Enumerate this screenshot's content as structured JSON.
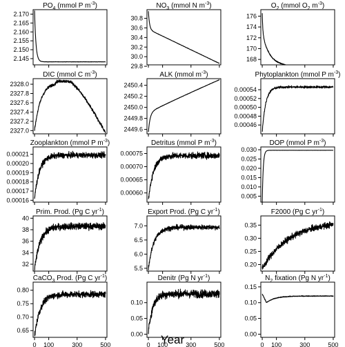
{
  "figure": {
    "xlabel": "Year"
  },
  "chart_data": [
    {
      "type": "line",
      "title": {
        "pre": "PO",
        "sub": "4",
        "post": " (mmol P m",
        "sup": "-3",
        "end": ")"
      },
      "yticks": [
        2.145,
        2.15,
        2.155,
        2.16,
        2.165,
        2.17
      ],
      "yticklabels": [
        "2.145",
        "2.150",
        "2.155",
        "2.160",
        "2.165",
        "2.170"
      ],
      "ylim": [
        2.1415,
        2.1725
      ],
      "xlim": [
        -10,
        510
      ],
      "xticks": [
        0,
        100,
        300,
        500
      ],
      "xticklabels": [
        "0",
        "100",
        "300",
        "500"
      ],
      "xticklabels_shown": false,
      "series": {
        "kind": "exp",
        "start": 2.172,
        "end": 2.1432,
        "tau": 10,
        "noise": 8e-05,
        "drift": 0
      }
    },
    {
      "type": "line",
      "title": {
        "pre": "NO",
        "sub": "3",
        "post": " (mmol N m",
        "sup": "-3",
        "end": ")"
      },
      "yticks": [
        29.8,
        30.0,
        30.2,
        30.4,
        30.6,
        30.8
      ],
      "yticklabels": [
        "29.8",
        "30.0",
        "30.2",
        "30.4",
        "30.6",
        "30.8"
      ],
      "ylim": [
        29.83,
        30.98
      ],
      "xlim": [
        -10,
        510
      ],
      "xticks": [
        0,
        100,
        300,
        500
      ],
      "xticklabels": [
        "0",
        "100",
        "300",
        "500"
      ],
      "xticklabels_shown": false,
      "series": {
        "kind": "drop_then_linear",
        "start": 30.95,
        "knee": 30.57,
        "end": 29.86,
        "tau": 8,
        "noise": 0.003
      }
    },
    {
      "type": "line",
      "title": {
        "pre": "O",
        "sub": "2",
        "post": " (mmol O",
        "sub2": "2",
        "post2": " m",
        "sup": "-3",
        "end": ")"
      },
      "yticks": [
        168,
        170,
        172,
        174,
        176
      ],
      "yticklabels": [
        "168",
        "170",
        "172",
        "174",
        "176"
      ],
      "ylim": [
        167.0,
        177.2
      ],
      "xlim": [
        -10,
        510
      ],
      "xticks": [
        0,
        100,
        300,
        500
      ],
      "xticklabels": [
        "0",
        "100",
        "300",
        "500"
      ],
      "xticklabels_shown": false,
      "series": {
        "kind": "o2",
        "start": 176.6,
        "end": 167.5,
        "noise": 0.12
      }
    },
    {
      "type": "line",
      "title": {
        "pre": "DIC (mmol C m",
        "sup": "-3",
        "end": ")"
      },
      "yticks": [
        2327.0,
        2327.2,
        2327.4,
        2327.6,
        2327.8,
        2328.0
      ],
      "yticklabels": [
        "2327.0",
        "2327.2",
        "2327.4",
        "2327.6",
        "2327.8",
        "2328.0"
      ],
      "ylim": [
        2326.93,
        2328.12
      ],
      "xlim": [
        -10,
        510
      ],
      "xticks": [
        0,
        100,
        300,
        500
      ],
      "xticklabels": [
        "0",
        "100",
        "300",
        "500"
      ],
      "xticklabels_shown": false,
      "series": {
        "kind": "dic",
        "start": 2327.0,
        "peak": 2328.07,
        "end": 2326.95,
        "noise": 0.03
      }
    },
    {
      "type": "line",
      "title": {
        "pre": "ALK (mmol m",
        "sup": "-3",
        "end": ")"
      },
      "yticks": [
        2449.6,
        2449.8,
        2450.0,
        2450.2,
        2450.4
      ],
      "yticklabels": [
        "2449.6",
        "2449.8",
        "2450.0",
        "2450.2",
        "2450.4"
      ],
      "ylim": [
        2449.52,
        2450.52
      ],
      "xlim": [
        -10,
        510
      ],
      "xticks": [
        0,
        100,
        300,
        500
      ],
      "xticklabels": [
        "0",
        "100",
        "300",
        "500"
      ],
      "xticklabels_shown": false,
      "series": {
        "kind": "rise_then_linear",
        "start": 2449.55,
        "knee": 2449.9,
        "end": 2450.5,
        "tau": 12,
        "noise": 0.003
      }
    },
    {
      "type": "line",
      "title": {
        "pre": "Phytoplankton (mmol P m",
        "sup": "-3",
        "end": ")"
      },
      "yticks": [
        0.00046,
        0.00048,
        0.0005,
        0.00052,
        0.00054
      ],
      "yticklabels": [
        "0.00046",
        "0.00048",
        "0.00050",
        "0.00052",
        "0.00054"
      ],
      "ylim": [
        0.00044,
        0.000565
      ],
      "xlim": [
        -10,
        510
      ],
      "xticks": [
        0,
        100,
        300,
        500
      ],
      "xticklabels": [
        "0",
        "100",
        "300",
        "500"
      ],
      "xticklabels_shown": false,
      "series": {
        "kind": "saturate",
        "start": 0.000445,
        "end": 0.000546,
        "tau": 25,
        "noise": 2.5e-06
      }
    },
    {
      "type": "line",
      "title": {
        "pre": "Zooplankton (mmol P m",
        "sup": "-3",
        "end": ")"
      },
      "yticks": [
        0.00016,
        0.00017,
        0.00018,
        0.00019,
        0.0002,
        0.00021
      ],
      "yticklabels": [
        "0.00016",
        "0.00017",
        "0.00018",
        "0.00019",
        "0.00020",
        "0.00021"
      ],
      "ylim": [
        0.000158,
        0.000218
      ],
      "xlim": [
        -10,
        510
      ],
      "xticks": [
        0,
        100,
        300,
        500
      ],
      "xticklabels": [
        "0",
        "100",
        "300",
        "500"
      ],
      "xticklabels_shown": false,
      "series": {
        "kind": "saturate",
        "start": 0.000162,
        "end": 0.000209,
        "tau": 35,
        "noise": 2.8e-06
      }
    },
    {
      "type": "line",
      "title": {
        "pre": "Detritus (mmol P m",
        "sup": "-3",
        "end": ")"
      },
      "yticks": [
        0.0006,
        0.00065,
        0.0007,
        0.00075
      ],
      "yticklabels": [
        "0.00060",
        "0.00065",
        "0.00070",
        "0.00075"
      ],
      "ylim": [
        0.000565,
        0.000775
      ],
      "xlim": [
        -10,
        510
      ],
      "xticks": [
        0,
        100,
        300,
        500
      ],
      "xticklabels": [
        "0",
        "100",
        "300",
        "500"
      ],
      "xticklabels_shown": false,
      "series": {
        "kind": "saturate",
        "start": 0.000572,
        "end": 0.000742,
        "tau": 35,
        "noise": 1.1e-05
      }
    },
    {
      "type": "line",
      "title": {
        "pre": "DOP (mmol P m",
        "sup": "-3",
        "end": ")"
      },
      "yticks": [
        0.005,
        0.01,
        0.015,
        0.02,
        0.025,
        0.03
      ],
      "yticklabels": [
        "0.005",
        "0.010",
        "0.015",
        "0.020",
        "0.025",
        "0.030"
      ],
      "ylim": [
        0.0018,
        0.0315
      ],
      "xlim": [
        -10,
        510
      ],
      "xticks": [
        0,
        100,
        300,
        500
      ],
      "xticklabels": [
        "0",
        "100",
        "300",
        "500"
      ],
      "xticklabels_shown": false,
      "series": {
        "kind": "exp",
        "start": 0.002,
        "end": 0.0297,
        "tau": 7,
        "noise": 4e-05,
        "drift": 0
      }
    },
    {
      "type": "line",
      "title": {
        "pre": "Prim. Prod. (Pg C yr",
        "sup": "-1",
        "end": ")"
      },
      "yticks": [
        32,
        34,
        36,
        38,
        40
      ],
      "yticklabels": [
        "32",
        "34",
        "36",
        "38",
        "40"
      ],
      "ylim": [
        30.8,
        40.4
      ],
      "xlim": [
        -10,
        510
      ],
      "xticks": [
        0,
        100,
        300,
        500
      ],
      "xticklabels": [
        "0",
        "100",
        "300",
        "500"
      ],
      "xticklabels_shown": false,
      "series": {
        "kind": "saturate",
        "start": 31.0,
        "end": 38.6,
        "tau": 40,
        "noise": 0.55
      }
    },
    {
      "type": "line",
      "title": {
        "pre": "Export Prod. (Pg C yr",
        "sup": "-1",
        "end": ")"
      },
      "yticks": [
        5.5,
        6.0,
        6.5,
        7.0
      ],
      "yticklabels": [
        "5.5",
        "6.0",
        "6.5",
        "7.0"
      ],
      "ylim": [
        5.4,
        7.35
      ],
      "xlim": [
        -10,
        510
      ],
      "xticks": [
        0,
        100,
        300,
        500
      ],
      "xticklabels": [
        "0",
        "100",
        "300",
        "500"
      ],
      "xticklabels_shown": false,
      "series": {
        "kind": "saturate",
        "start": 5.5,
        "end": 6.95,
        "tau": 40,
        "noise": 0.08
      }
    },
    {
      "type": "line",
      "title": {
        "pre": "F2000 (Pg C yr",
        "sup": "-1",
        "end": ")"
      },
      "yticks": [
        0.2,
        0.25,
        0.3,
        0.35
      ],
      "yticklabels": [
        "0.20",
        "0.25",
        "0.30",
        "0.35"
      ],
      "ylim": [
        0.175,
        0.385
      ],
      "xlim": [
        -10,
        510
      ],
      "xticks": [
        0,
        100,
        300,
        500
      ],
      "xticklabels": [
        "0",
        "100",
        "300",
        "500"
      ],
      "xticklabels_shown": false,
      "series": {
        "kind": "saturate",
        "start": 0.185,
        "end": 0.365,
        "tau": 190,
        "noise": 0.011
      }
    },
    {
      "type": "line",
      "title": {
        "pre": "CaCO",
        "sub": "3",
        "post": " Prod. (Pg C yr",
        "sup": "-1",
        "end": ")"
      },
      "yticks": [
        0.65,
        0.7,
        0.75,
        0.8
      ],
      "yticklabels": [
        "0.65",
        "0.70",
        "0.75",
        "0.80"
      ],
      "ylim": [
        0.625,
        0.83
      ],
      "xlim": [
        -10,
        510
      ],
      "xticks": [
        0,
        100,
        300,
        500
      ],
      "xticklabels": [
        "0",
        "100",
        "300",
        "500"
      ],
      "xticklabels_shown": true,
      "series": {
        "kind": "saturate",
        "start": 0.63,
        "end": 0.785,
        "tau": 40,
        "noise": 0.011
      }
    },
    {
      "type": "line",
      "title": {
        "pre": "Denitr (Pg N yr",
        "sup": "-1",
        "end": ")"
      },
      "yticks": [
        0.0,
        0.05,
        0.1
      ],
      "yticklabels": [
        "0.00",
        "0.05",
        "0.10"
      ],
      "ylim": [
        -0.01,
        0.165
      ],
      "xlim": [
        -10,
        510
      ],
      "xticks": [
        0,
        100,
        300,
        500
      ],
      "xticklabels": [
        "0",
        "100",
        "300",
        "500"
      ],
      "xticklabels_shown": true,
      "series": {
        "kind": "saturate",
        "start": 0.005,
        "end": 0.128,
        "tau": 30,
        "noise": 0.012
      }
    },
    {
      "type": "line",
      "title": {
        "pre": "N",
        "sub": "2",
        "post": " fixation (Pg N yr",
        "sup": "-1",
        "end": ")"
      },
      "yticks": [
        0.0,
        0.05,
        0.1,
        0.15
      ],
      "yticklabels": [
        "0.00",
        "0.05",
        "0.10",
        "0.15"
      ],
      "ylim": [
        -0.01,
        0.165
      ],
      "xlim": [
        -10,
        510
      ],
      "xticks": [
        0,
        100,
        300,
        500
      ],
      "xticklabels": [
        "0",
        "100",
        "300",
        "500"
      ],
      "xticklabels_shown": true,
      "series": {
        "kind": "dip",
        "start": 0.128,
        "low": 0.1,
        "end": 0.121,
        "noise": 0.0012
      }
    }
  ]
}
